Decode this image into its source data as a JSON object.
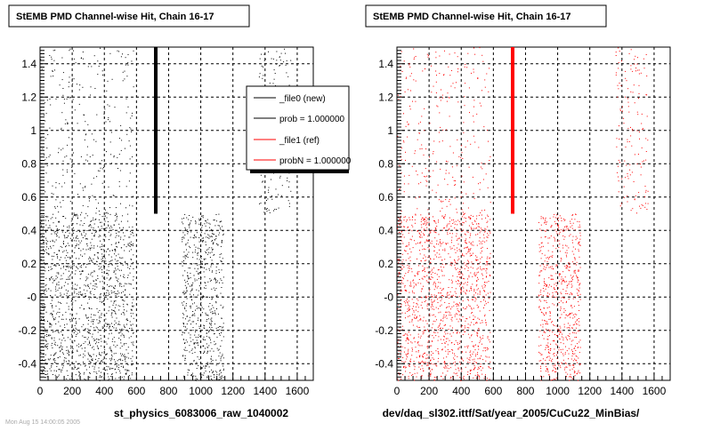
{
  "chart_data": [
    {
      "type": "scatter",
      "title": "StEMB PMD Channel-wise Hit, Chain 16-17",
      "xlabel": "st_physics_6083006_raw_1040002",
      "ylabel": "",
      "xlim": [
        0,
        1700
      ],
      "ylim": [
        -0.5,
        1.5
      ],
      "x_ticks": [
        "0",
        "200",
        "400",
        "600",
        "800",
        "1000",
        "1200",
        "1400",
        "1600"
      ],
      "y_ticks": [
        "-0.4",
        "-0.2",
        "-0",
        "0.2",
        "0.4",
        "0.6",
        "0.8",
        "1",
        "1.2",
        "1.4"
      ],
      "grid": true,
      "point_color": "#000000",
      "bar": {
        "x": 720,
        "y_min": 0.5,
        "y_max": 1.5
      },
      "hit_bands": [
        {
          "x_range": [
            0,
            580
          ],
          "y_range": [
            -0.5,
            0.5
          ],
          "density": "dense"
        },
        {
          "x_range": [
            880,
            1140
          ],
          "y_range": [
            -0.5,
            0.5
          ],
          "density": "dense"
        },
        {
          "x_range": [
            0,
            580
          ],
          "y_range": [
            0.5,
            1.5
          ],
          "density": "sparse"
        },
        {
          "x_range": [
            1360,
            1560
          ],
          "y_range": [
            0.5,
            1.5
          ],
          "density": "sparse"
        }
      ],
      "legend": {
        "placement": "top-right",
        "entries": [
          {
            "label": "_file0 (new)",
            "color": "#000000"
          },
          {
            "label": "prob = 1.000000",
            "color": "#000000"
          },
          {
            "label": "_file1 (ref)",
            "color": "#ff0000"
          },
          {
            "label": "probN = 1.000000",
            "color": "#ff0000"
          }
        ]
      }
    },
    {
      "type": "scatter",
      "title": "StEMB PMD Channel-wise Hit, Chain 16-17",
      "xlabel": "dev/daq_sl302.ittf/Sat/year_2005/CuCu22_MinBias/",
      "ylabel": "",
      "xlim": [
        0,
        1700
      ],
      "ylim": [
        -0.5,
        1.5
      ],
      "x_ticks": [
        "0",
        "200",
        "400",
        "600",
        "800",
        "1000",
        "1200",
        "1400",
        "1600"
      ],
      "y_ticks": [
        "-0.4",
        "-0.2",
        "-0",
        "0.2",
        "0.4",
        "0.6",
        "0.8",
        "1",
        "1.2",
        "1.4"
      ],
      "grid": true,
      "point_color": "#ff0000",
      "bar": {
        "x": 720,
        "y_min": 0.5,
        "y_max": 1.5
      },
      "hit_bands": [
        {
          "x_range": [
            0,
            580
          ],
          "y_range": [
            -0.5,
            0.5
          ],
          "density": "dense"
        },
        {
          "x_range": [
            880,
            1140
          ],
          "y_range": [
            -0.5,
            0.5
          ],
          "density": "dense"
        },
        {
          "x_range": [
            0,
            580
          ],
          "y_range": [
            0.5,
            1.5
          ],
          "density": "sparse"
        },
        {
          "x_range": [
            1360,
            1560
          ],
          "y_range": [
            0.5,
            1.5
          ],
          "density": "sparse"
        }
      ]
    }
  ],
  "footer_text": "Mon Aug 15 14:00:05 2005"
}
